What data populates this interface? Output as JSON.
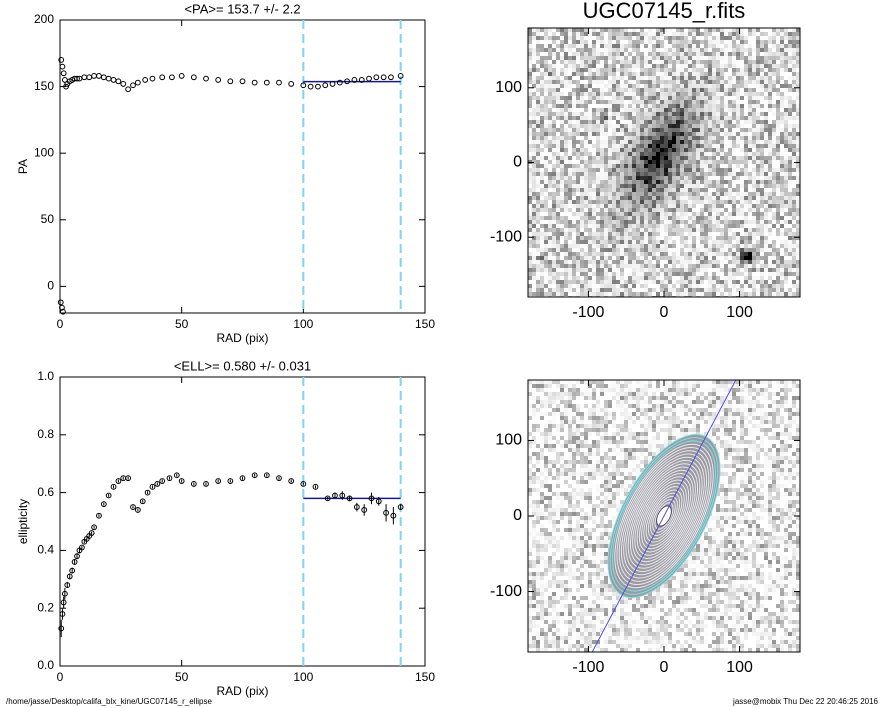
{
  "chart_data": [
    {
      "type": "scatter",
      "title": "<PA>= 153.7 +/-   2.2",
      "x_label": "RAD (pix)",
      "y_label": "PA",
      "xlim": [
        0,
        150
      ],
      "ylim": [
        -20,
        200
      ],
      "xticks": [
        0,
        50,
        100,
        150
      ],
      "yticks": [
        0,
        50,
        100,
        150,
        200
      ],
      "x": [
        0.5,
        1,
        1.5,
        2,
        2.5,
        3,
        4,
        5,
        6,
        7,
        8,
        10,
        12,
        14,
        16,
        18,
        20,
        22,
        24,
        26,
        28,
        30,
        32,
        35,
        38,
        42,
        46,
        50,
        55,
        60,
        65,
        70,
        75,
        80,
        85,
        90,
        95,
        100,
        103,
        106,
        109,
        112,
        115,
        118,
        121,
        124,
        127,
        130,
        133,
        136,
        140,
        0.3,
        0.8,
        1.2
      ],
      "values": [
        170,
        165,
        160,
        155,
        150,
        152,
        154,
        155,
        156,
        156,
        156,
        157,
        157,
        158,
        158,
        157,
        156,
        155,
        154,
        152,
        148,
        151,
        153,
        155,
        156,
        157,
        157,
        158,
        157,
        156,
        155,
        154,
        154,
        153,
        153,
        153,
        152,
        151,
        150,
        150,
        151,
        152,
        153,
        154,
        155,
        155,
        156,
        157,
        157,
        157,
        158,
        -12,
        -16,
        -19
      ],
      "color": "#000000",
      "vlines": [
        100,
        140
      ],
      "vline_color": "#80d4ec",
      "fit": {
        "value": 153.7,
        "xrange": [
          100,
          140
        ]
      },
      "fit_color": "#1a1a8c"
    },
    {
      "type": "image",
      "title": "UGC07145_r.fits",
      "xlim": [
        -180,
        180
      ],
      "ylim": [
        -180,
        180
      ],
      "xticks": [
        -100,
        0,
        100
      ],
      "yticks": [
        -100,
        0,
        100
      ],
      "contours": false
    },
    {
      "type": "scatter",
      "title": "<ELL>= 0.580 +/-  0.031",
      "x_label": "RAD (pix)",
      "y_label": "ellipticity",
      "xlim": [
        0,
        150
      ],
      "ylim": [
        0,
        1.0
      ],
      "xticks": [
        0,
        50,
        100,
        150
      ],
      "yticks": [
        {
          "value": 0,
          "label": "0.0"
        },
        {
          "value": 0.2,
          "label": "0.2"
        },
        {
          "value": 0.4,
          "label": "0.4"
        },
        {
          "value": 0.6,
          "label": "0.6"
        },
        {
          "value": 0.8,
          "label": "0.8"
        },
        {
          "value": 1.0,
          "label": "1.0"
        }
      ],
      "x": [
        0.5,
        1,
        1.5,
        2,
        3,
        4,
        5,
        6,
        7,
        8,
        9,
        10,
        11,
        12,
        13,
        14,
        16,
        18,
        20,
        22,
        24,
        26,
        28,
        30,
        32,
        34,
        36,
        38,
        40,
        42,
        45,
        48,
        50,
        55,
        60,
        65,
        70,
        75,
        80,
        85,
        90,
        95,
        100,
        105,
        110,
        113,
        116,
        119,
        122,
        125,
        128,
        131,
        134,
        137,
        140
      ],
      "values": [
        0.13,
        0.18,
        0.22,
        0.25,
        0.28,
        0.31,
        0.33,
        0.36,
        0.38,
        0.4,
        0.41,
        0.43,
        0.44,
        0.45,
        0.46,
        0.48,
        0.52,
        0.56,
        0.59,
        0.62,
        0.64,
        0.65,
        0.65,
        0.55,
        0.54,
        0.57,
        0.6,
        0.62,
        0.63,
        0.64,
        0.65,
        0.66,
        0.64,
        0.63,
        0.63,
        0.64,
        0.64,
        0.65,
        0.66,
        0.66,
        0.65,
        0.64,
        0.63,
        0.62,
        0.58,
        0.59,
        0.59,
        0.58,
        0.55,
        0.54,
        0.58,
        0.57,
        0.53,
        0.52,
        0.55
      ],
      "errors": [
        0.03,
        0.02,
        0.02,
        0.02,
        0.01,
        0.01,
        0.01,
        0.01,
        0.01,
        0.01,
        0.005,
        0.005,
        0.005,
        0.005,
        0.005,
        0.005,
        0.005,
        0.005,
        0.005,
        0.005,
        0.005,
        0.005,
        0.005,
        0.005,
        0.005,
        0.005,
        0.005,
        0.005,
        0.005,
        0.005,
        0.005,
        0.005,
        0.005,
        0.005,
        0.005,
        0.005,
        0.005,
        0.005,
        0.005,
        0.005,
        0.005,
        0.005,
        0.005,
        0.005,
        0.005,
        0.01,
        0.015,
        0.01,
        0.015,
        0.02,
        0.02,
        0.015,
        0.03,
        0.03,
        0.01
      ],
      "color": "#000000",
      "vlines": [
        100,
        140
      ],
      "vline_color": "#80d4ec",
      "fit": {
        "value": 0.58,
        "xrange": [
          100,
          140
        ]
      },
      "fit_color": "#1a1a8c"
    },
    {
      "type": "image",
      "xlim": [
        -180,
        180
      ],
      "ylim": [
        -180,
        180
      ],
      "xticks": [
        -100,
        0,
        100
      ],
      "yticks": [
        -100,
        0,
        100
      ],
      "contours": true
    }
  ],
  "footer": {
    "left": "/home/jasse/Desktop/califa_blx_kine/UGC07145_r_ellipse",
    "right": "jasse@mobix  Thu Dec 22 20:46:25 2016"
  }
}
